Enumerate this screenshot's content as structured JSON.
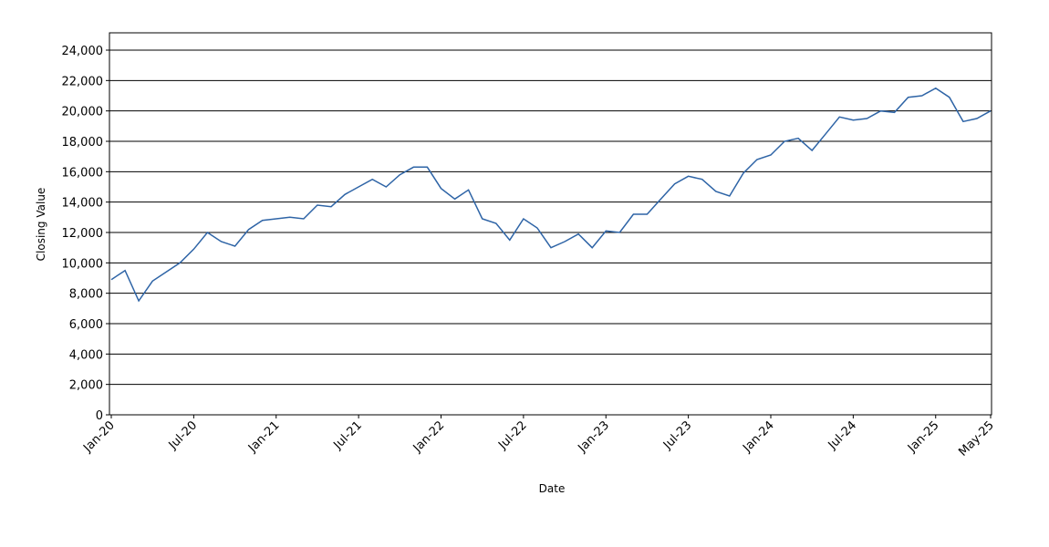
{
  "chart_data": {
    "type": "line",
    "xlabel": "Date",
    "ylabel": "Closing Value",
    "x": [
      "2020-01",
      "2020-02",
      "2020-03",
      "2020-04",
      "2020-05",
      "2020-06",
      "2020-07",
      "2020-08",
      "2020-09",
      "2020-10",
      "2020-11",
      "2020-12",
      "2021-01",
      "2021-02",
      "2021-03",
      "2021-04",
      "2021-05",
      "2021-06",
      "2021-07",
      "2021-08",
      "2021-09",
      "2021-10",
      "2021-11",
      "2021-12",
      "2022-01",
      "2022-02",
      "2022-03",
      "2022-04",
      "2022-05",
      "2022-06",
      "2022-07",
      "2022-08",
      "2022-09",
      "2022-10",
      "2022-11",
      "2022-12",
      "2023-01",
      "2023-02",
      "2023-03",
      "2023-04",
      "2023-05",
      "2023-06",
      "2023-07",
      "2023-08",
      "2023-09",
      "2023-10",
      "2023-11",
      "2023-12",
      "2024-01",
      "2024-02",
      "2024-03",
      "2024-04",
      "2024-05",
      "2024-06",
      "2024-07",
      "2024-08",
      "2024-09",
      "2024-10",
      "2024-11",
      "2024-12",
      "2025-01",
      "2025-02",
      "2025-03",
      "2025-04",
      "2025-05"
    ],
    "values": [
      8900,
      9500,
      7500,
      8800,
      9400,
      10000,
      10900,
      12000,
      11400,
      11100,
      12200,
      12800,
      12900,
      13000,
      12900,
      13800,
      13700,
      14500,
      15000,
      15500,
      15000,
      15800,
      16300,
      16300,
      14900,
      14200,
      14800,
      12900,
      12600,
      11500,
      12900,
      12300,
      11000,
      11400,
      11900,
      11000,
      12100,
      12000,
      13200,
      13200,
      14200,
      15200,
      15700,
      15500,
      14700,
      14400,
      15900,
      16800,
      17100,
      18000,
      18200,
      17400,
      18500,
      19600,
      19400,
      19500,
      20000,
      19900,
      20900,
      21000,
      21500,
      20900,
      19300,
      19500,
      20000
    ],
    "color": "#2e64a6",
    "xlim": [
      "2020-01",
      "2025-05"
    ],
    "xticks": [
      {
        "value": "2020-01",
        "label": "Jan-20"
      },
      {
        "value": "2020-07",
        "label": "Jul-20"
      },
      {
        "value": "2021-01",
        "label": "Jan-21"
      },
      {
        "value": "2021-07",
        "label": "Jul-21"
      },
      {
        "value": "2022-01",
        "label": "Jan-22"
      },
      {
        "value": "2022-07",
        "label": "Jul-22"
      },
      {
        "value": "2023-01",
        "label": "Jan-23"
      },
      {
        "value": "2023-07",
        "label": "Jul-23"
      },
      {
        "value": "2024-01",
        "label": "Jan-24"
      },
      {
        "value": "2024-07",
        "label": "Jul-24"
      },
      {
        "value": "2025-01",
        "label": "Jan-25"
      },
      {
        "value": "2025-05",
        "label": "May-25"
      }
    ],
    "ylim": [
      0,
      25140
    ],
    "yticks": [
      0,
      {
        "value": 2000,
        "label": "2,000"
      },
      {
        "value": 4000,
        "label": "4,000"
      },
      {
        "value": 6000,
        "label": "6,000"
      },
      {
        "value": 8000,
        "label": "8,000"
      },
      {
        "value": 10000,
        "label": "10,000"
      },
      {
        "value": 12000,
        "label": "12,000"
      },
      {
        "value": 14000,
        "label": "14,000"
      },
      {
        "value": 16000,
        "label": "16,000"
      },
      {
        "value": 18000,
        "label": "18,000"
      },
      {
        "value": 20000,
        "label": "20,000"
      },
      {
        "value": 22000,
        "label": "22,000"
      },
      {
        "value": 24000,
        "label": "24,000"
      }
    ],
    "grid": true
  }
}
